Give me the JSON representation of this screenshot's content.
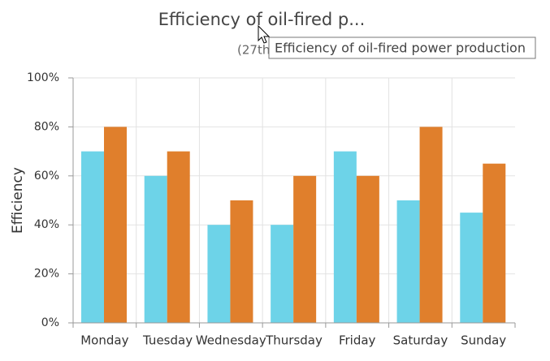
{
  "chart_data": {
    "type": "bar",
    "title": "Efficiency of oil-fired p...",
    "subtitle": "(27th",
    "tooltip": "Efficiency of oil-fired power production",
    "y_label": "Efficiency",
    "categories": [
      "Monday",
      "Tuesday",
      "Wednesday",
      "Thursday",
      "Friday",
      "Saturday",
      "Sunday"
    ],
    "series": [
      {
        "color": "#6dd3e8",
        "values": [
          70,
          60,
          40,
          40,
          70,
          50,
          45
        ]
      },
      {
        "color": "#e07f2c",
        "values": [
          80,
          70,
          50,
          60,
          60,
          80,
          65
        ]
      }
    ],
    "ylim": [
      0,
      100
    ],
    "yticks": [
      {
        "value": 0,
        "label": "0%"
      },
      {
        "value": 20,
        "label": "20%"
      },
      {
        "value": 40,
        "label": "40%"
      },
      {
        "value": 60,
        "label": "60%"
      },
      {
        "value": 80,
        "label": "80%"
      },
      {
        "value": 100,
        "label": "100%"
      }
    ],
    "grid": true
  }
}
